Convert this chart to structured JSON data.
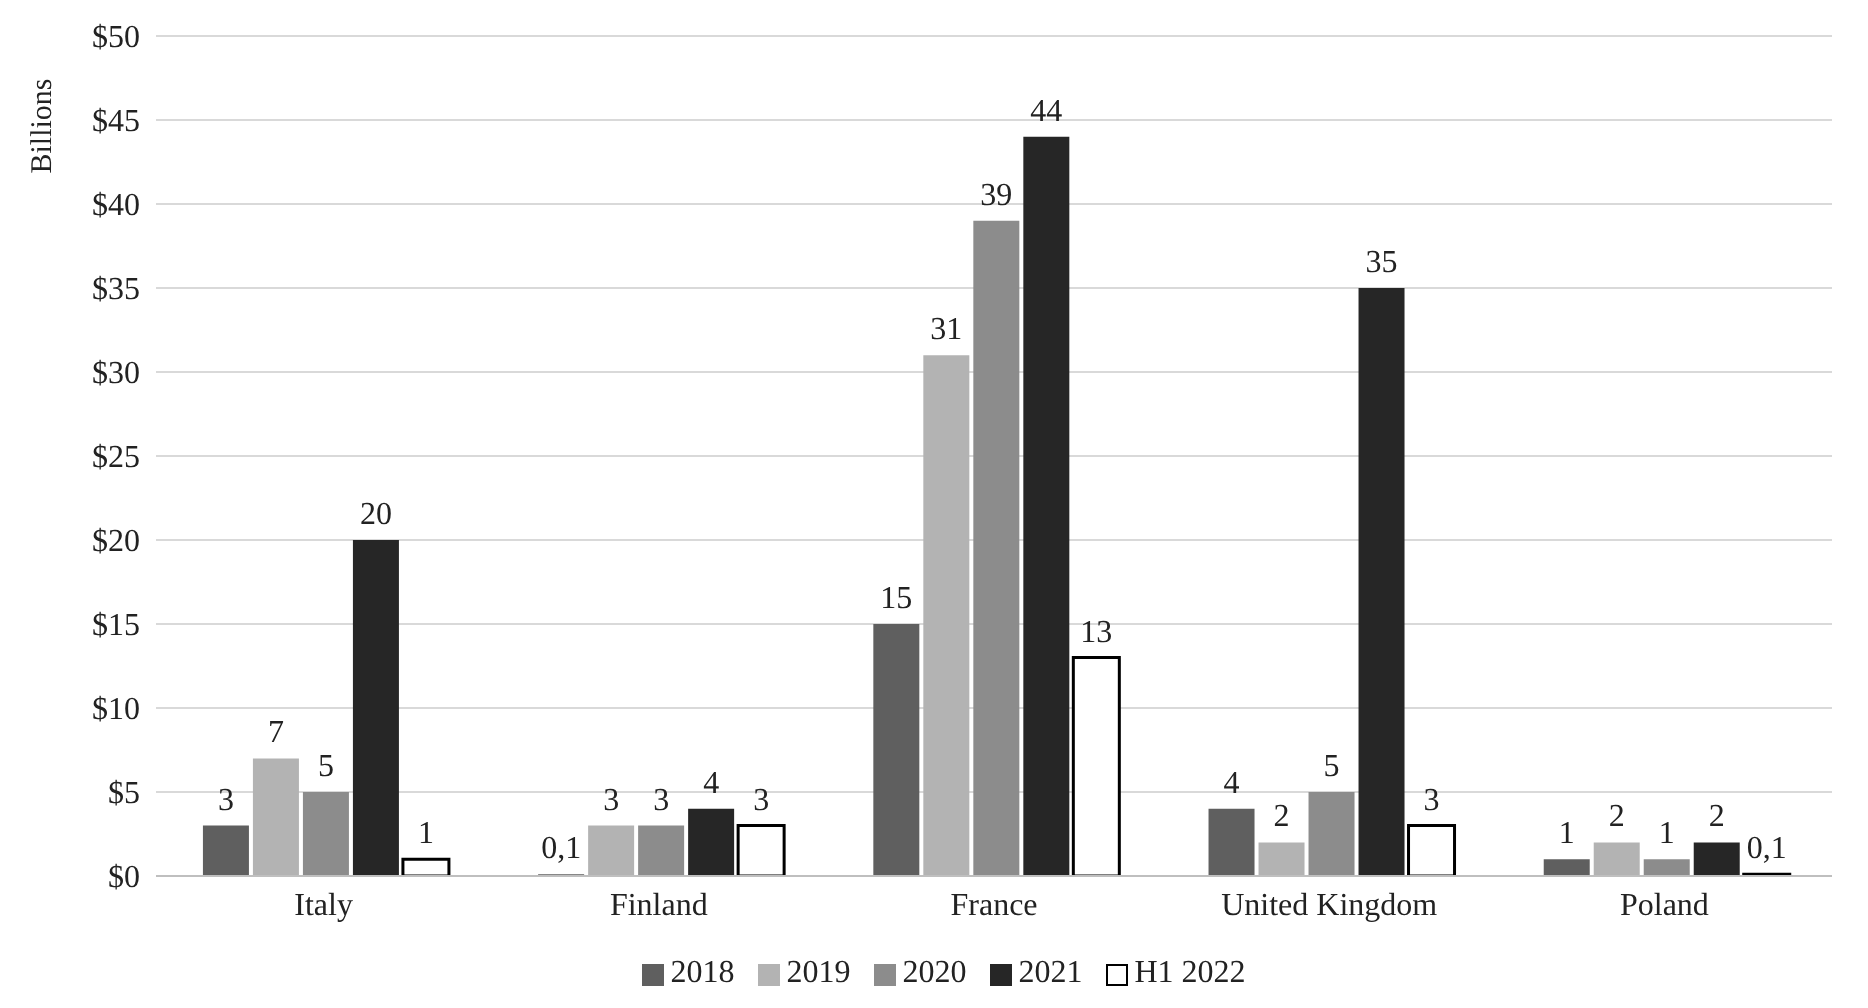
{
  "chart_data": {
    "type": "bar",
    "ylabel": "Billions",
    "categories": [
      "Italy",
      "Finland",
      "France",
      "United Kingdom",
      "Poland"
    ],
    "series": [
      {
        "name": "2018",
        "color": "#5f5f5f",
        "values": [
          3,
          0.1,
          15,
          4,
          1
        ],
        "value_labels": [
          "3",
          "0,1",
          "15",
          "4",
          "1"
        ]
      },
      {
        "name": "2019",
        "color": "#b3b3b3",
        "values": [
          7,
          3,
          31,
          2,
          2
        ],
        "value_labels": [
          "7",
          "3",
          "31",
          "2",
          "2"
        ]
      },
      {
        "name": "2020",
        "color": "#8c8c8c",
        "values": [
          5,
          3,
          39,
          5,
          1
        ],
        "value_labels": [
          "5",
          "3",
          "39",
          "5",
          "1"
        ]
      },
      {
        "name": "2021",
        "color": "#262626",
        "values": [
          20,
          4,
          44,
          35,
          2
        ],
        "value_labels": [
          "20",
          "4",
          "44",
          "35",
          "2"
        ]
      },
      {
        "name": "H1 2022",
        "color": "#ffffff",
        "values": [
          1,
          3,
          13,
          3,
          0.1
        ],
        "value_labels": [
          "1",
          "3",
          "13",
          "3",
          "0,1"
        ]
      }
    ],
    "ylim": [
      0,
      50
    ],
    "yticks": [
      {
        "value": 0,
        "label": "$0"
      },
      {
        "value": 5,
        "label": "$5"
      },
      {
        "value": 10,
        "label": "$10"
      },
      {
        "value": 15,
        "label": "$15"
      },
      {
        "value": 20,
        "label": "$20"
      },
      {
        "value": 25,
        "label": "$25"
      },
      {
        "value": 30,
        "label": "$30"
      },
      {
        "value": 35,
        "label": "$35"
      },
      {
        "value": 40,
        "label": "$40"
      },
      {
        "value": 45,
        "label": "$45"
      },
      {
        "value": 50,
        "label": "$50"
      }
    ],
    "grid": "y",
    "legend": "bottom"
  }
}
